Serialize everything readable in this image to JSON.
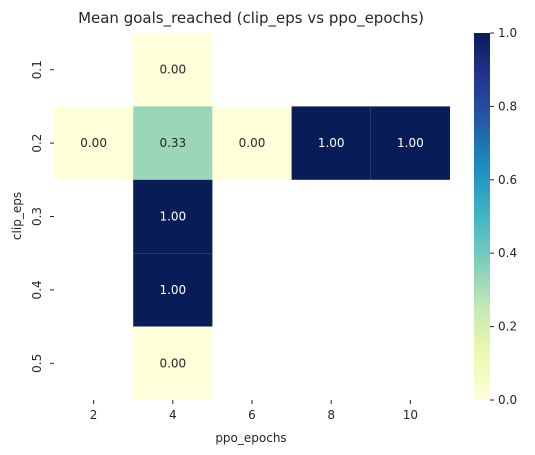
{
  "chart_data": {
    "type": "heatmap",
    "title": "Mean goals_reached (clip_eps vs ppo_epochs)",
    "xlabel": "ppo_epochs",
    "ylabel": "clip_eps",
    "x_categories": [
      "2",
      "4",
      "6",
      "8",
      "10"
    ],
    "y_categories": [
      "0.1",
      "0.2",
      "0.3",
      "0.4",
      "0.5"
    ],
    "cells": [
      {
        "x": "4",
        "y": "0.1",
        "value": 0.0,
        "label": "0.00"
      },
      {
        "x": "2",
        "y": "0.2",
        "value": 0.0,
        "label": "0.00"
      },
      {
        "x": "4",
        "y": "0.2",
        "value": 0.33,
        "label": "0.33"
      },
      {
        "x": "6",
        "y": "0.2",
        "value": 0.0,
        "label": "0.00"
      },
      {
        "x": "8",
        "y": "0.2",
        "value": 1.0,
        "label": "1.00"
      },
      {
        "x": "10",
        "y": "0.2",
        "value": 1.0,
        "label": "1.00"
      },
      {
        "x": "4",
        "y": "0.3",
        "value": 1.0,
        "label": "1.00"
      },
      {
        "x": "4",
        "y": "0.4",
        "value": 1.0,
        "label": "1.00"
      },
      {
        "x": "4",
        "y": "0.5",
        "value": 0.0,
        "label": "0.00"
      }
    ],
    "colorbar": {
      "range": [
        0.0,
        1.0
      ],
      "ticks": [
        "0.0",
        "0.2",
        "0.4",
        "0.6",
        "0.8",
        "1.0"
      ],
      "colormap": "YlGnBu",
      "stops": [
        "#ffffd9",
        "#edf8b1",
        "#c7e9b4",
        "#7fcdbb",
        "#41b6c4",
        "#1d91c0",
        "#225ea8",
        "#253494",
        "#081d58"
      ]
    },
    "grid": false,
    "legend": "colorbar-right"
  }
}
